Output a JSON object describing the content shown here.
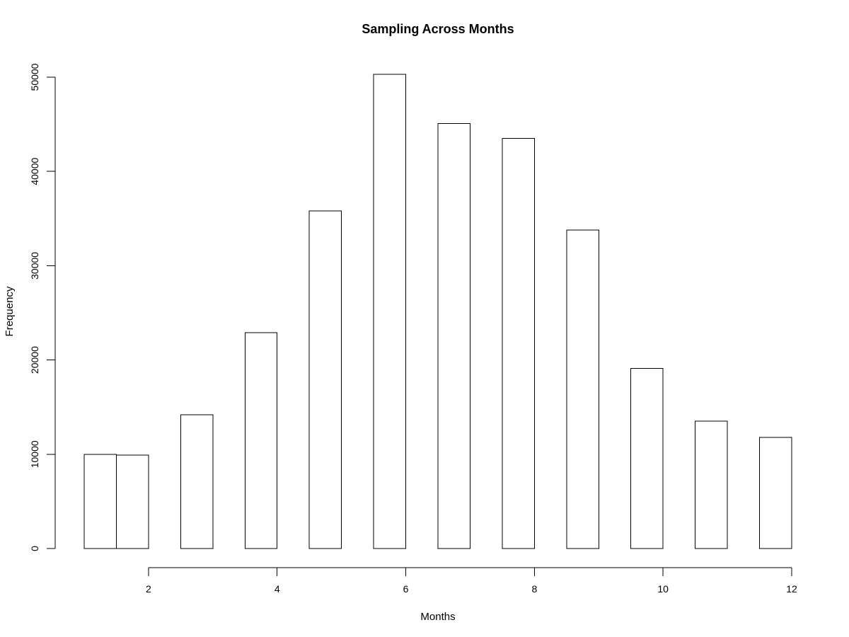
{
  "chart_data": {
    "type": "bar",
    "title": "Sampling Across Months",
    "xlabel": "Months",
    "ylabel": "Frequency",
    "bins": [
      {
        "x0": 1.0,
        "x1": 1.5,
        "value": 10000
      },
      {
        "x0": 1.5,
        "x1": 2.0,
        "value": 9900
      },
      {
        "x0": 2.0,
        "x1": 2.5,
        "value": 0
      },
      {
        "x0": 2.5,
        "x1": 3.0,
        "value": 14200
      },
      {
        "x0": 3.0,
        "x1": 3.5,
        "value": 0
      },
      {
        "x0": 3.5,
        "x1": 4.0,
        "value": 22900
      },
      {
        "x0": 4.0,
        "x1": 4.5,
        "value": 0
      },
      {
        "x0": 4.5,
        "x1": 5.0,
        "value": 35800
      },
      {
        "x0": 5.0,
        "x1": 5.5,
        "value": 0
      },
      {
        "x0": 5.5,
        "x1": 6.0,
        "value": 50300
      },
      {
        "x0": 6.0,
        "x1": 6.5,
        "value": 0
      },
      {
        "x0": 6.5,
        "x1": 7.0,
        "value": 45100
      },
      {
        "x0": 7.0,
        "x1": 7.5,
        "value": 0
      },
      {
        "x0": 7.5,
        "x1": 8.0,
        "value": 43500
      },
      {
        "x0": 8.0,
        "x1": 8.5,
        "value": 0
      },
      {
        "x0": 8.5,
        "x1": 9.0,
        "value": 33800
      },
      {
        "x0": 9.0,
        "x1": 9.5,
        "value": 0
      },
      {
        "x0": 9.5,
        "x1": 10.0,
        "value": 19100
      },
      {
        "x0": 10.0,
        "x1": 10.5,
        "value": 0
      },
      {
        "x0": 10.5,
        "x1": 11.0,
        "value": 13500
      },
      {
        "x0": 11.0,
        "x1": 11.5,
        "value": 0
      },
      {
        "x0": 11.5,
        "x1": 12.0,
        "value": 11800
      }
    ],
    "xlim": [
      1,
      12
    ],
    "ylim": [
      0,
      50000
    ],
    "x_ticks": [
      2,
      4,
      6,
      8,
      10,
      12
    ],
    "y_ticks": [
      0,
      10000,
      20000,
      30000,
      40000,
      50000
    ],
    "x_tick_labels": [
      "2",
      "4",
      "6",
      "8",
      "10",
      "12"
    ],
    "y_tick_labels": [
      "0",
      "10000",
      "20000",
      "30000",
      "40000",
      "50000"
    ],
    "grid": false,
    "legend": "none"
  }
}
